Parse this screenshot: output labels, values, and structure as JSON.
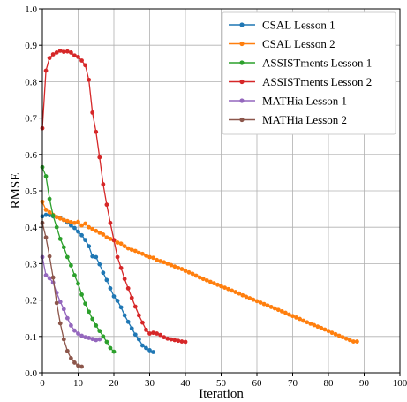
{
  "chart_data": {
    "type": "line",
    "title": "",
    "xlabel": "Iteration",
    "ylabel": "RMSE",
    "xlim": [
      0,
      100
    ],
    "ylim": [
      0,
      1
    ],
    "xticks": [
      "0",
      "10",
      "20",
      "30",
      "40",
      "50",
      "60",
      "70",
      "80",
      "90",
      "100"
    ],
    "yticks": [
      "0.0",
      "0.1",
      "0.2",
      "0.3",
      "0.4",
      "0.5",
      "0.6",
      "0.7",
      "0.8",
      "0.9",
      "1.0"
    ],
    "grid": true,
    "legend_position": "top-right",
    "series": [
      {
        "name": "CSAL Lesson 1",
        "color": "#1f77b4",
        "y": [
          0.43,
          0.434,
          0.433,
          0.43,
          0.428,
          0.426,
          0.42,
          0.413,
          0.405,
          0.398,
          0.388,
          0.378,
          0.365,
          0.348,
          0.32,
          0.318,
          0.298,
          0.275,
          0.255,
          0.232,
          0.21,
          0.198,
          0.18,
          0.158,
          0.14,
          0.122,
          0.105,
          0.092,
          0.075,
          0.068,
          0.062,
          0.057
        ]
      },
      {
        "name": "CSAL Lesson 2",
        "color": "#ff7f0e",
        "y": [
          0.47,
          0.448,
          0.441,
          0.434,
          0.428,
          0.424,
          0.42,
          0.417,
          0.414,
          0.412,
          0.415,
          0.405,
          0.41,
          0.4,
          0.395,
          0.39,
          0.385,
          0.38,
          0.372,
          0.368,
          0.364,
          0.358,
          0.355,
          0.348,
          0.342,
          0.338,
          0.335,
          0.33,
          0.327,
          0.322,
          0.318,
          0.316,
          0.31,
          0.307,
          0.304,
          0.3,
          0.296,
          0.292,
          0.288,
          0.285,
          0.28,
          0.276,
          0.272,
          0.267,
          0.262,
          0.258,
          0.254,
          0.25,
          0.246,
          0.242,
          0.238,
          0.234,
          0.23,
          0.226,
          0.222,
          0.218,
          0.213,
          0.209,
          0.205,
          0.201,
          0.197,
          0.193,
          0.189,
          0.185,
          0.181,
          0.177,
          0.173,
          0.169,
          0.165,
          0.16,
          0.156,
          0.152,
          0.148,
          0.143,
          0.139,
          0.135,
          0.131,
          0.127,
          0.123,
          0.119,
          0.115,
          0.11,
          0.106,
          0.102,
          0.098,
          0.094,
          0.09,
          0.086,
          0.086
        ]
      },
      {
        "name": "ASSISTments Lesson 1",
        "color": "#2ca02c",
        "y": [
          0.565,
          0.54,
          0.478,
          0.432,
          0.4,
          0.368,
          0.345,
          0.318,
          0.295,
          0.268,
          0.245,
          0.215,
          0.19,
          0.168,
          0.148,
          0.13,
          0.115,
          0.1,
          0.085,
          0.068,
          0.058
        ]
      },
      {
        "name": "ASSISTments Lesson 2",
        "color": "#d62728",
        "y": [
          0.672,
          0.83,
          0.865,
          0.875,
          0.88,
          0.885,
          0.882,
          0.883,
          0.88,
          0.872,
          0.868,
          0.858,
          0.845,
          0.805,
          0.715,
          0.662,
          0.592,
          0.518,
          0.462,
          0.412,
          0.365,
          0.318,
          0.288,
          0.258,
          0.232,
          0.206,
          0.182,
          0.158,
          0.138,
          0.118,
          0.108,
          0.11,
          0.108,
          0.104,
          0.098,
          0.094,
          0.092,
          0.09,
          0.088,
          0.086,
          0.085
        ]
      },
      {
        "name": "MATHia Lesson 1",
        "color": "#9467bd",
        "y": [
          0.318,
          0.268,
          0.26,
          0.248,
          0.22,
          0.195,
          0.175,
          0.15,
          0.13,
          0.116,
          0.108,
          0.102,
          0.098,
          0.096,
          0.093,
          0.09,
          0.092
        ]
      },
      {
        "name": "MATHia Lesson 2",
        "color": "#8c564b",
        "y": [
          0.412,
          0.372,
          0.32,
          0.262,
          0.192,
          0.136,
          0.092,
          0.06,
          0.04,
          0.028,
          0.02,
          0.017
        ]
      }
    ]
  }
}
